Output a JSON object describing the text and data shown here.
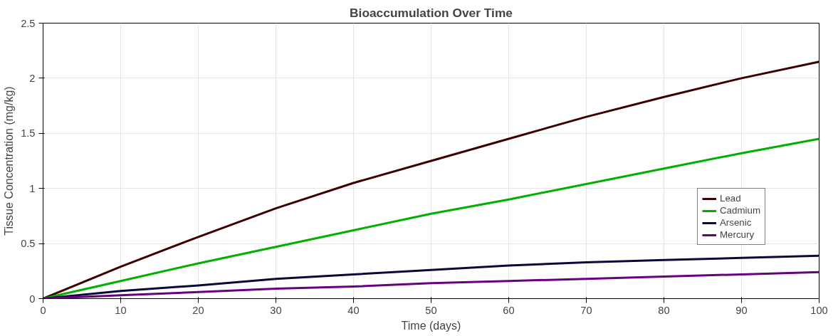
{
  "chart_data": {
    "type": "line",
    "title": "Bioaccumulation Over Time",
    "xlabel": "Time (days)",
    "ylabel": "Tissue Concentration (mg/kg)",
    "x": [
      0,
      10,
      20,
      30,
      40,
      50,
      60,
      70,
      80,
      90,
      100
    ],
    "series": [
      {
        "name": "Lead",
        "color": "#3d0000",
        "values": [
          0,
          0.29,
          0.56,
          0.82,
          1.05,
          1.25,
          1.45,
          1.65,
          1.83,
          2.0,
          2.15
        ]
      },
      {
        "name": "Cadmium",
        "color": "#00b000",
        "values": [
          0,
          0.16,
          0.32,
          0.47,
          0.62,
          0.77,
          0.9,
          1.04,
          1.18,
          1.32,
          1.45
        ]
      },
      {
        "name": "Arsenic",
        "color": "#0a0a3a",
        "values": [
          0,
          0.07,
          0.12,
          0.18,
          0.22,
          0.26,
          0.3,
          0.33,
          0.35,
          0.37,
          0.39
        ]
      },
      {
        "name": "Mercury",
        "color": "#6a0080",
        "values": [
          0,
          0.03,
          0.06,
          0.09,
          0.11,
          0.14,
          0.16,
          0.18,
          0.2,
          0.22,
          0.24
        ]
      }
    ],
    "xlim": [
      0,
      100
    ],
    "xticks": [
      0,
      10,
      20,
      30,
      40,
      50,
      60,
      70,
      80,
      90,
      100
    ],
    "ylim": [
      0,
      2.5
    ],
    "yticks": [
      0,
      0.5,
      1,
      1.5,
      2,
      2.5
    ],
    "grid": true,
    "legend": "bottom right",
    "line_style": "solid"
  }
}
